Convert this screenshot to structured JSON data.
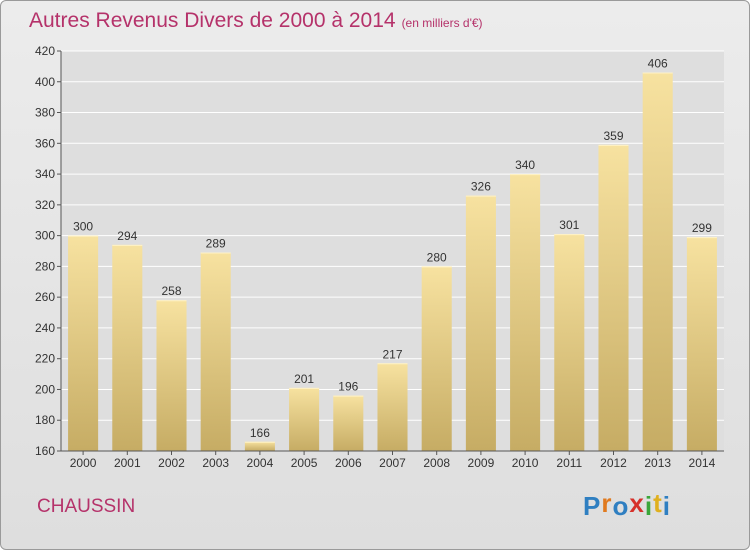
{
  "header": {
    "title": "Autres Revenus Divers de 2000 à 2014",
    "subtitle": "(en milliers d'€)"
  },
  "footer": {
    "place": "CHAUSSIN",
    "logo": "Proxiti"
  },
  "colors": {
    "title": "#b5326a",
    "bar_top": "#f7e2a0",
    "bar_bottom": "#c6ac64",
    "logo_letters": [
      "#2f7fc1",
      "#e07a1f",
      "#2f7fc1",
      "#d6312a",
      "#3aa63a",
      "#e0b01f",
      "#2f7fc1"
    ]
  },
  "chart_data": {
    "type": "bar",
    "title": "Autres Revenus Divers de 2000 à 2014",
    "categories": [
      "2000",
      "2001",
      "2002",
      "2003",
      "2004",
      "2005",
      "2006",
      "2007",
      "2008",
      "2009",
      "2010",
      "2011",
      "2012",
      "2013",
      "2014"
    ],
    "values": [
      300,
      294,
      258,
      289,
      166,
      201,
      196,
      217,
      280,
      326,
      340,
      301,
      359,
      406,
      299
    ],
    "ylim": [
      160,
      420
    ],
    "yticks": [
      160,
      180,
      200,
      220,
      240,
      260,
      280,
      300,
      320,
      340,
      360,
      380,
      400,
      420
    ],
    "grid": true,
    "xlabel": "",
    "ylabel": ""
  }
}
